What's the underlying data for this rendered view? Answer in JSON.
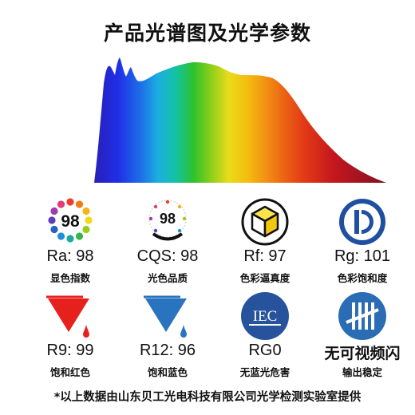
{
  "title": "产品光谱图及光学参数",
  "colors": {
    "ra_orange": "#f07c12",
    "rg_blue": "#1f4fa0",
    "red": "#e6201c",
    "blue": "#2a74bf",
    "iec_blue": "#26539c",
    "flicker_blue": "#2a6db5"
  },
  "parameters": [
    {
      "icon": "color-wheel-icon",
      "badge": "98",
      "value": "Ra: 98",
      "label": "显色指数"
    },
    {
      "icon": "cqs-badge-icon",
      "badge": "98",
      "value": "CQS: 98",
      "label": "光色品质"
    },
    {
      "icon": "cube-icon",
      "value": "Rf: 97",
      "label": "色彩逼真度"
    },
    {
      "icon": "rg-half-circle-icon",
      "value": "Rg: 101",
      "label": "色彩饱和度"
    },
    {
      "icon": "red-paint-bucket-icon",
      "value": "R9: 99",
      "label": "饱和红色"
    },
    {
      "icon": "blue-paint-bucket-icon",
      "value": "R12: 96",
      "label": "饱和蓝色"
    },
    {
      "icon": "iec-logo-icon",
      "badge": "IEC",
      "value": "RG0",
      "label": "无蓝光危害"
    },
    {
      "icon": "no-flicker-icon",
      "value": "无可视频闪",
      "label": "输出稳定"
    }
  ],
  "footnote": "*以上数据由山东贝工光电科技有限公司光学检测实验室提供"
}
